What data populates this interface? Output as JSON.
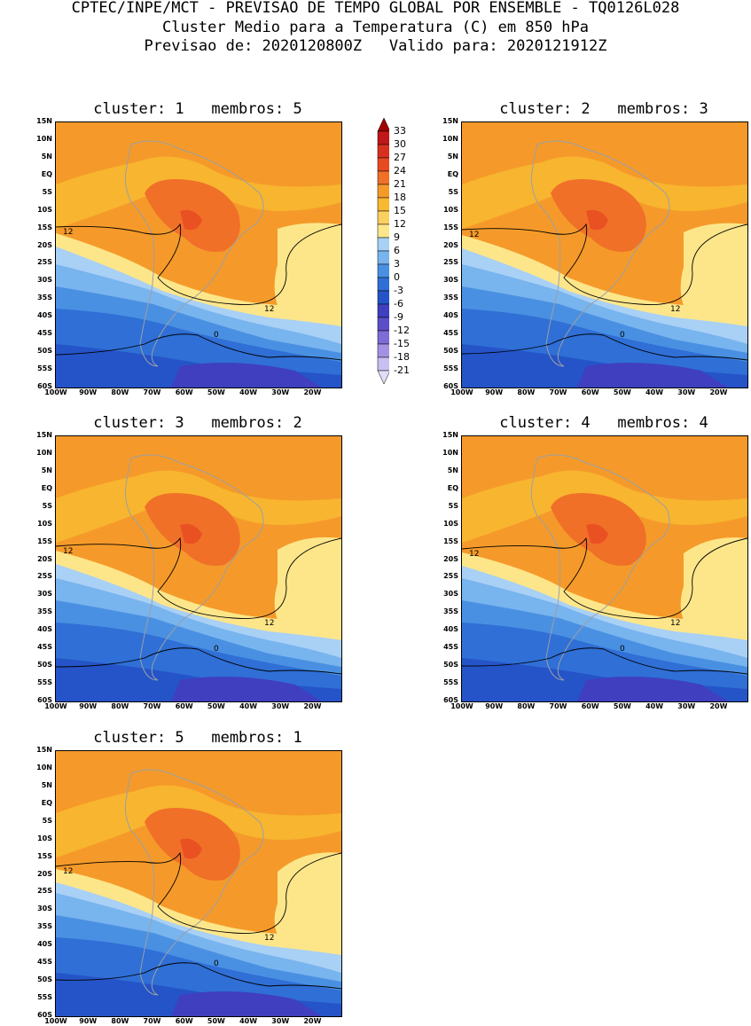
{
  "header": {
    "line1": "CPTEC/INPE/MCT - PREVISAO DE TEMPO GLOBAL POR ENSEMBLE - TQ0126L028",
    "line2": "Cluster Medio para a Temperatura (C) em 850 hPa",
    "line3": "Previsao de: 2020120800Z   Valido para: 2020121912Z"
  },
  "lat_labels": [
    "15N",
    "10N",
    "5N",
    "EQ",
    "5S",
    "10S",
    "15S",
    "20S",
    "25S",
    "30S",
    "35S",
    "40S",
    "45S",
    "50S",
    "55S",
    "60S"
  ],
  "lon_labels": [
    "100W",
    "90W",
    "80W",
    "70W",
    "60W",
    "50W",
    "40W",
    "30W",
    "20W"
  ],
  "colorbar": {
    "labels": [
      "33",
      "30",
      "27",
      "24",
      "21",
      "18",
      "15",
      "12",
      "9",
      "6",
      "3",
      "0",
      "-3",
      "-6",
      "-9",
      "-12",
      "-15",
      "-18",
      "-21"
    ],
    "colors": [
      "#a00000",
      "#c01818",
      "#d83020",
      "#e84a20",
      "#f07028",
      "#f59a2a",
      "#f8b830",
      "#fad060",
      "#fde68a",
      "#a9d0f5",
      "#78b4ee",
      "#4a90e2",
      "#2f6fd6",
      "#2554c8",
      "#3f3fbf",
      "#5a4ec9",
      "#7d6cd6",
      "#a392e3",
      "#c9bff0",
      "#e4dcf7"
    ]
  },
  "panels": [
    {
      "id": "1",
      "title": "cluster: 1   membros: 5"
    },
    {
      "id": "2",
      "title": "cluster: 2   membros: 3"
    },
    {
      "id": "3",
      "title": "cluster: 3   membros: 2"
    },
    {
      "id": "4",
      "title": "cluster: 4   membros: 4"
    },
    {
      "id": "5",
      "title": "cluster: 5   membros: 1"
    }
  ],
  "contour_labels": {
    "warm": "12",
    "cold": "0"
  }
}
